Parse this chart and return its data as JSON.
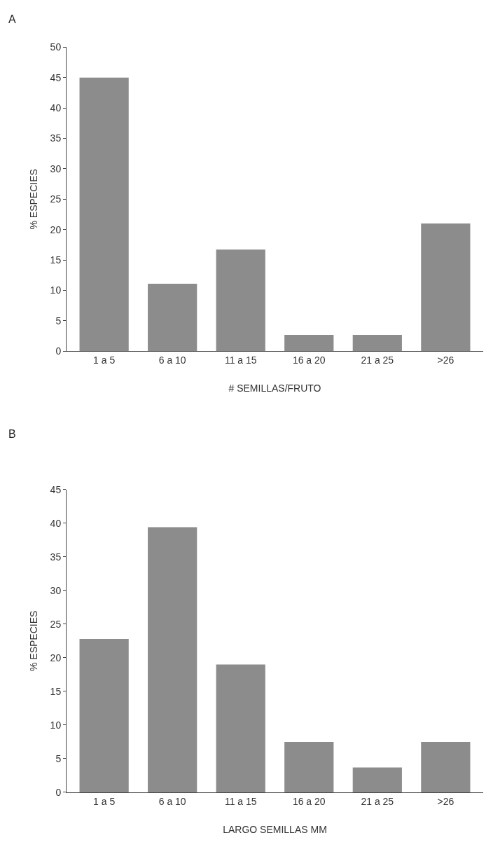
{
  "chart_data": [
    {
      "type": "bar",
      "title": "A",
      "xlabel": "# SEMILLAS/FRUTO",
      "ylabel": "% ESPECIES",
      "categories": [
        "1 a 5",
        "6 a 10",
        "11 a 15",
        "16 a 20",
        "21 a 25",
        ">26"
      ],
      "values": [
        45,
        11.1,
        16.7,
        2.7,
        2.7,
        21
      ],
      "color": "#8c8c8c",
      "ylim": [
        0,
        50
      ],
      "yticks": [
        0,
        5,
        10,
        15,
        20,
        25,
        30,
        35,
        40,
        45,
        50
      ]
    },
    {
      "type": "bar",
      "title": "B",
      "xlabel": "LARGO SEMILLAS MM",
      "ylabel": "% ESPECIES",
      "categories": [
        "1 a 5",
        "6 a 10",
        "11 a 15",
        "16 a 20",
        "21 a 25",
        ">26"
      ],
      "values": [
        22.8,
        39.4,
        19.0,
        7.5,
        3.7,
        7.5
      ],
      "color": "#8c8c8c",
      "ylim": [
        0,
        45
      ],
      "yticks": [
        0,
        5,
        10,
        15,
        20,
        25,
        30,
        35,
        40,
        45
      ]
    }
  ]
}
